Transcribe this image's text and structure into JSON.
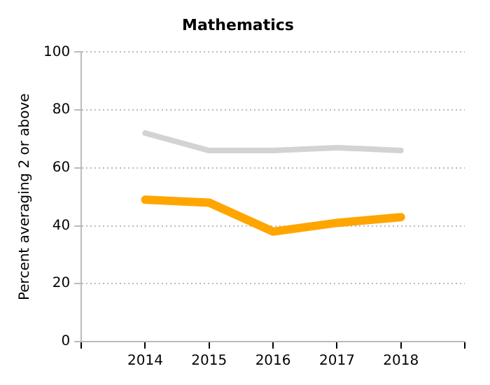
{
  "chart_data": {
    "type": "line",
    "title": "Mathematics",
    "ylabel": "Percent averaging 2 or above",
    "x": [
      2014,
      2015,
      2016,
      2017,
      2018
    ],
    "series": [
      {
        "color": "#d3d3d3",
        "values": [
          72,
          66,
          66,
          67,
          66
        ]
      },
      {
        "color": "#ffa500",
        "values": [
          49,
          48,
          38,
          41,
          43
        ]
      }
    ],
    "xlim": [
      2013,
      2019
    ],
    "xticks": [
      {
        "value": 2013,
        "label": null
      },
      2014,
      2015,
      2016,
      2017,
      2018,
      {
        "value": 2019,
        "label": null
      }
    ],
    "ylim": [
      0,
      100
    ],
    "yticks": [
      0,
      20,
      40,
      60,
      80,
      100
    ],
    "grid": "y",
    "legend": false,
    "marker": "none",
    "line_style": "solid"
  }
}
